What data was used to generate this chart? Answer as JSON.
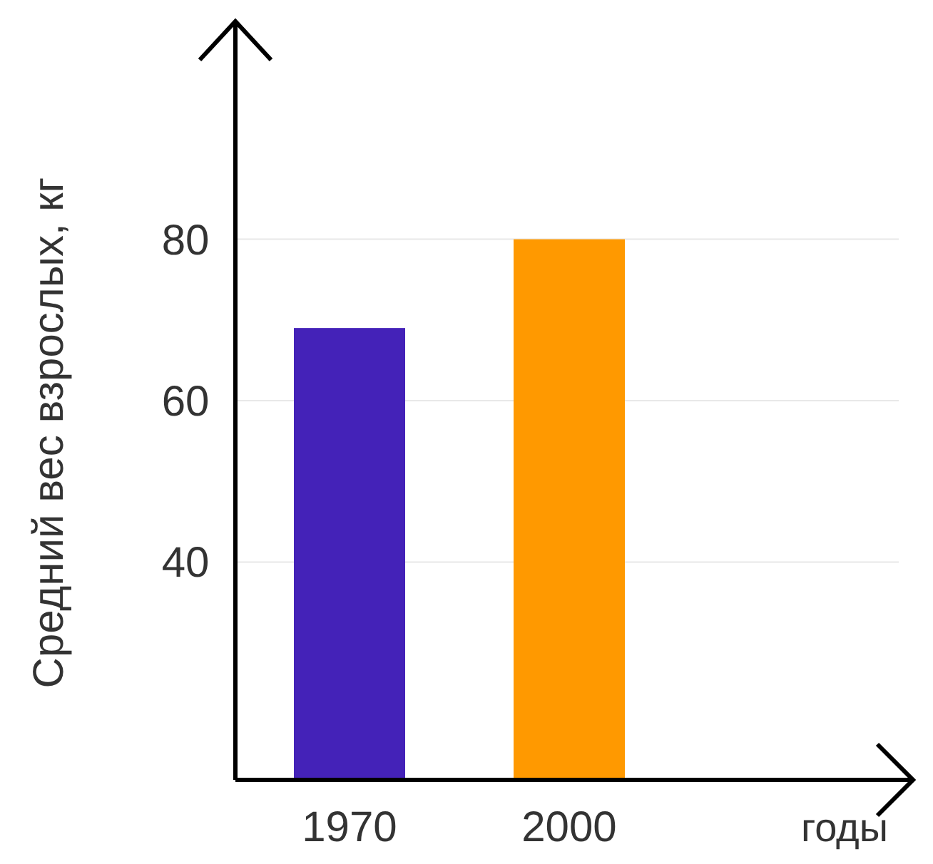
{
  "chart_data": {
    "type": "bar",
    "ylabel": "Средний вес взрослых, кг",
    "xlabel": "годы",
    "categories": [
      "1970",
      "2000"
    ],
    "values": [
      69,
      80
    ],
    "colors": [
      "#4422b8",
      "#ff9900"
    ],
    "ylim": [
      13,
      107
    ],
    "yticks": [
      40,
      60,
      80
    ],
    "grid": "y"
  }
}
